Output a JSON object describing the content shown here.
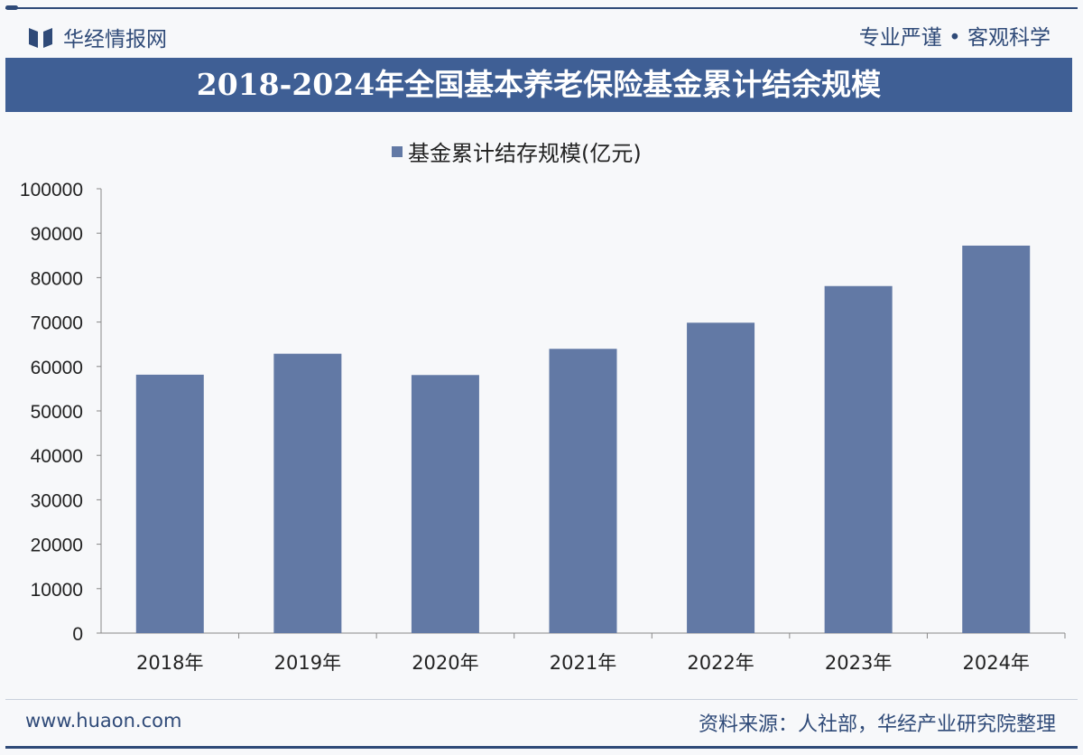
{
  "header": {
    "logo_text": "华经情报网",
    "slogan": "专业严谨 • 客观科学"
  },
  "footer": {
    "website": "www.huaon.com",
    "source": "资料来源：人社部，华经产业研究院整理"
  },
  "colors": {
    "bar": "#6279a5",
    "title_bg": "#3f5f95",
    "brand": "#2f4a78"
  },
  "chart_data": {
    "type": "bar",
    "title": "2018-2024年全国基本养老保险基金累计结余规模",
    "categories": [
      "2018年",
      "2019年",
      "2020年",
      "2021年",
      "2022年",
      "2023年",
      "2024年"
    ],
    "series": [
      {
        "name": "基金累计结存规模(亿元)",
        "values": [
          58152,
          62873,
          58075,
          63970,
          69851,
          78100,
          87200
        ]
      }
    ],
    "ylim": [
      0,
      100000
    ],
    "yticks": [
      0,
      10000,
      20000,
      30000,
      40000,
      50000,
      60000,
      70000,
      80000,
      90000,
      100000
    ],
    "xlabel": "",
    "ylabel": "",
    "legend": "top-center",
    "grid": false
  }
}
